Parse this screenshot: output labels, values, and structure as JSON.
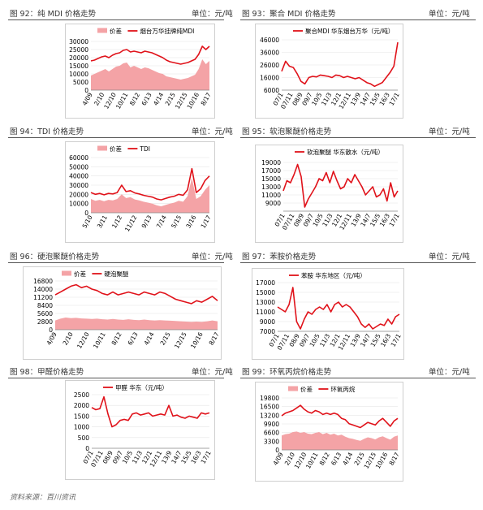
{
  "unit_label": "单位：元/吨",
  "source": "资料来源：百川资讯",
  "colors": {
    "line": "#e0121a",
    "area": "#f4a3a6",
    "grid": "#e6e6e6",
    "frame": "#cfcfcf"
  },
  "charts": [
    {
      "title": "图 92：纯 MDI 价格走势",
      "chart_data": {
        "type": "line",
        "legend": [
          {
            "name": "价差",
            "kind": "area"
          },
          {
            "name": "烟台万华挂牌纯MDI",
            "kind": "line"
          }
        ],
        "x_ticks": [
          "4/09",
          "2/10",
          "12/10",
          "10/11",
          "8/12",
          "6/13",
          "4/14",
          "2/15",
          "12/15",
          "10/16",
          "8/17"
        ],
        "y_ticks": [
          0,
          5000,
          10000,
          15000,
          20000,
          25000,
          30000
        ],
        "ylim": [
          0,
          30000
        ],
        "series": [
          {
            "name": "烟台万华挂牌纯MDI",
            "kind": "line",
            "values": [
              18000,
              18500,
              19500,
              20500,
              21000,
              20000,
              21500,
              22500,
              23000,
              24500,
              25000,
              23500,
              24000,
              23500,
              23000,
              24000,
              23500,
              23000,
              22000,
              21000,
              20000,
              18500,
              17500,
              17000,
              16500,
              16000,
              16500,
              17000,
              18000,
              19000,
              22000,
              27000,
              25000,
              27000
            ]
          },
          {
            "name": "价差",
            "kind": "area",
            "values": [
              9000,
              10000,
              11000,
              12000,
              13000,
              11500,
              13000,
              14500,
              15000,
              16500,
              17000,
              14000,
              15000,
              14000,
              13000,
              14000,
              13500,
              12500,
              11500,
              10500,
              10000,
              8500,
              8000,
              7500,
              7000,
              6500,
              7000,
              7500,
              8500,
              9500,
              13000,
              19000,
              16000,
              18000
            ]
          }
        ]
      }
    },
    {
      "title": "图 93：聚合 MDI 价格走势",
      "chart_data": {
        "type": "line",
        "legend": [
          {
            "name": "聚合MDI 华东烟台万华（元/吨）",
            "kind": "line"
          }
        ],
        "x_ticks": [
          "07/1",
          "07/11",
          "08/9",
          "09/7",
          "10/5",
          "11/3",
          "12/1",
          "12/11",
          "13/9",
          "14/7",
          "15/5",
          "16/3",
          "17/1"
        ],
        "y_ticks": [
          6000,
          16000,
          26000,
          36000,
          46000
        ],
        "ylim": [
          6000,
          46000
        ],
        "series": [
          {
            "name": "聚合MDI 华东烟台万华（元/吨）",
            "kind": "line",
            "values": [
              21000,
              29000,
              25000,
              24000,
              19000,
              13000,
              11000,
              16000,
              17000,
              16500,
              18000,
              17500,
              17000,
              16000,
              18000,
              17500,
              16000,
              17000,
              16000,
              15000,
              16000,
              14000,
              12000,
              11000,
              9000,
              10500,
              12000,
              16000,
              20000,
              25000,
              44000
            ]
          }
        ]
      }
    },
    {
      "title": "图 94：TDI 价格走势",
      "chart_data": {
        "type": "line",
        "legend": [
          {
            "name": "价差",
            "kind": "area"
          },
          {
            "name": "TDI",
            "kind": "line"
          }
        ],
        "x_ticks": [
          "5/10",
          "3/11",
          "1/12",
          "11/12",
          "9/13",
          "7/14",
          "5/15",
          "3/16",
          "1/17"
        ],
        "y_ticks": [
          0,
          10000,
          20000,
          30000,
          40000,
          50000,
          60000
        ],
        "ylim": [
          0,
          60000
        ],
        "series": [
          {
            "name": "TDI",
            "kind": "line",
            "values": [
              22000,
              20000,
              21000,
              19500,
              21000,
              20500,
              22000,
              30000,
              23000,
              24000,
              21500,
              20500,
              19000,
              18000,
              17000,
              15000,
              14000,
              15500,
              17000,
              18000,
              20000,
              19000,
              25000,
              48000,
              22000,
              26000,
              35000,
              40000
            ]
          },
          {
            "name": "价差",
            "kind": "area",
            "values": [
              15000,
              13000,
              14000,
              12500,
              14000,
              13500,
              15000,
              20000,
              16000,
              17000,
              14500,
              13500,
              12000,
              11000,
              10000,
              8000,
              7000,
              8500,
              10000,
              11000,
              13000,
              12000,
              18000,
              38000,
              15000,
              18000,
              25000,
              30000
            ]
          }
        ]
      }
    },
    {
      "title": "图 95：软泡聚醚价格走势",
      "chart_data": {
        "type": "line",
        "legend": [
          {
            "name": "软泡聚醚 华东散水（元/吨）",
            "kind": "line"
          }
        ],
        "x_ticks": [
          "07/1",
          "07/11",
          "08/9",
          "09/7",
          "10/5",
          "11/3",
          "12/1",
          "12/11",
          "13/9",
          "14/7",
          "15/5",
          "16/3",
          "17/1"
        ],
        "y_ticks": [
          9000,
          11000,
          13000,
          15000,
          17000,
          19000
        ],
        "ylim": [
          7000,
          19000
        ],
        "series": [
          {
            "name": "软泡聚醚 华东散水（元/吨）",
            "kind": "line",
            "values": [
              12000,
              14500,
              14000,
              16000,
              18500,
              15500,
              8000,
              10000,
              11500,
              13000,
              15000,
              14500,
              16500,
              14000,
              16800,
              14500,
              12500,
              13000,
              15000,
              14000,
              16000,
              14500,
              13000,
              11000,
              12000,
              13000,
              10500,
              11000,
              12500,
              9500,
              14000,
              10500,
              12000
            ]
          }
        ]
      }
    },
    {
      "title": "图 96：硬泡聚醚价格走势",
      "chart_data": {
        "type": "line",
        "legend": [
          {
            "name": "价差",
            "kind": "area"
          },
          {
            "name": "硬泡聚醚",
            "kind": "line"
          }
        ],
        "x_ticks": [
          "4/09",
          "2/10",
          "12/10",
          "10/11",
          "8/12",
          "6/13",
          "4/14",
          "2/15",
          "12/15",
          "10/16",
          "8/17"
        ],
        "y_ticks": [
          0,
          2800,
          5600,
          8400,
          11200,
          14000,
          16800
        ],
        "ylim": [
          0,
          16800
        ],
        "series": [
          {
            "name": "硬泡聚醚",
            "kind": "line",
            "values": [
              12000,
              13000,
              14000,
              15000,
              15500,
              14500,
              15000,
              14000,
              13500,
              12500,
              12000,
              13000,
              12000,
              12500,
              13000,
              12500,
              12000,
              13000,
              12500,
              12000,
              13000,
              12500,
              11500,
              10500,
              10000,
              9500,
              9000,
              10000,
              9500,
              10500,
              11500,
              10000
            ]
          },
          {
            "name": "价差",
            "kind": "area",
            "values": [
              3200,
              3800,
              4200,
              4000,
              4100,
              3900,
              3800,
              3700,
              3800,
              3600,
              3500,
              3700,
              3500,
              3400,
              3600,
              3400,
              3300,
              3500,
              3300,
              3200,
              3300,
              3200,
              3100,
              3000,
              2900,
              2800,
              2700,
              2800,
              2700,
              2900,
              3200,
              2900
            ]
          }
        ]
      }
    },
    {
      "title": "图 97：苯胺价格走势",
      "chart_data": {
        "type": "line",
        "legend": [
          {
            "name": "苯胺 华东地区（元/吨）",
            "kind": "line"
          }
        ],
        "x_ticks": [
          "07/1",
          "07/11",
          "08/9",
          "09/7",
          "10/5",
          "11/3",
          "12/1",
          "12/11",
          "13/9",
          "14/7",
          "15/5",
          "16/3",
          "17/1"
        ],
        "y_ticks": [
          7000,
          9000,
          11000,
          13000,
          15000,
          17000
        ],
        "ylim": [
          7000,
          17000
        ],
        "series": [
          {
            "name": "苯胺 华东地区（元/吨）",
            "kind": "line",
            "values": [
              12000,
              11500,
              11000,
              12500,
              16000,
              9000,
              7500,
              9500,
              11000,
              10500,
              11500,
              12000,
              11500,
              12500,
              11000,
              12500,
              13000,
              12000,
              12500,
              12000,
              11000,
              10000,
              8500,
              7800,
              8500,
              7500,
              8000,
              8500,
              8200,
              9500,
              8500,
              10000,
              10500
            ]
          }
        ]
      }
    },
    {
      "title": "图 98：甲醛价格走势",
      "chart_data": {
        "type": "line",
        "legend": [
          {
            "name": "甲醛 华东（元/吨）",
            "kind": "line"
          }
        ],
        "x_ticks": [
          "07/1",
          "07/11",
          "08/9",
          "09/7",
          "10/5",
          "11/3",
          "12/1",
          "12/11",
          "13/9",
          "14/7",
          "15/5",
          "16/3",
          "17/1"
        ],
        "y_ticks": [
          0,
          500,
          1000,
          1500,
          2000,
          2500
        ],
        "ylim": [
          0,
          2500
        ],
        "series": [
          {
            "name": "甲醛 华东（元/吨）",
            "kind": "line",
            "values": [
              1900,
              1800,
              1850,
              2400,
              1600,
              1000,
              1100,
              1300,
              1350,
              1300,
              1600,
              1650,
              1550,
              1600,
              1650,
              1500,
              1550,
              1600,
              1550,
              2000,
              1500,
              1550,
              1450,
              1400,
              1500,
              1450,
              1400,
              1650,
              1600,
              1650
            ]
          }
        ]
      }
    },
    {
      "title": "图 99：环氧丙烷价格走势",
      "chart_data": {
        "type": "line",
        "legend": [
          {
            "name": "价差",
            "kind": "area"
          },
          {
            "name": "环氧丙烷",
            "kind": "line"
          }
        ],
        "x_ticks": [
          "4/09",
          "2/10",
          "12/10",
          "10/11",
          "8/12",
          "6/13",
          "4/14",
          "2/15",
          "12/15",
          "10/16",
          "8/17"
        ],
        "y_ticks": [
          0,
          3300,
          6600,
          9900,
          13200,
          16500,
          19800
        ],
        "ylim": [
          0,
          19800
        ],
        "series": [
          {
            "name": "环氧丙烷",
            "kind": "line",
            "values": [
              13000,
              14000,
              14500,
              15000,
              16000,
              17000,
              15500,
              14500,
              14000,
              15000,
              14500,
              13500,
              14000,
              13500,
              14000,
              13500,
              12000,
              11500,
              10000,
              9500,
              9000,
              8500,
              9500,
              10500,
              10000,
              9500,
              11000,
              12000,
              10500,
              9000,
              11000,
              12000
            ]
          },
          {
            "name": "价差",
            "kind": "area",
            "values": [
              5500,
              6000,
              6200,
              6800,
              7000,
              6500,
              6800,
              6200,
              6000,
              6500,
              6800,
              6000,
              6500,
              5800,
              6200,
              5500,
              5800,
              5000,
              4500,
              4200,
              3800,
              3500,
              4200,
              4800,
              4500,
              4000,
              4800,
              5200,
              4500,
              3900,
              5000,
              5500
            ]
          }
        ]
      }
    }
  ]
}
